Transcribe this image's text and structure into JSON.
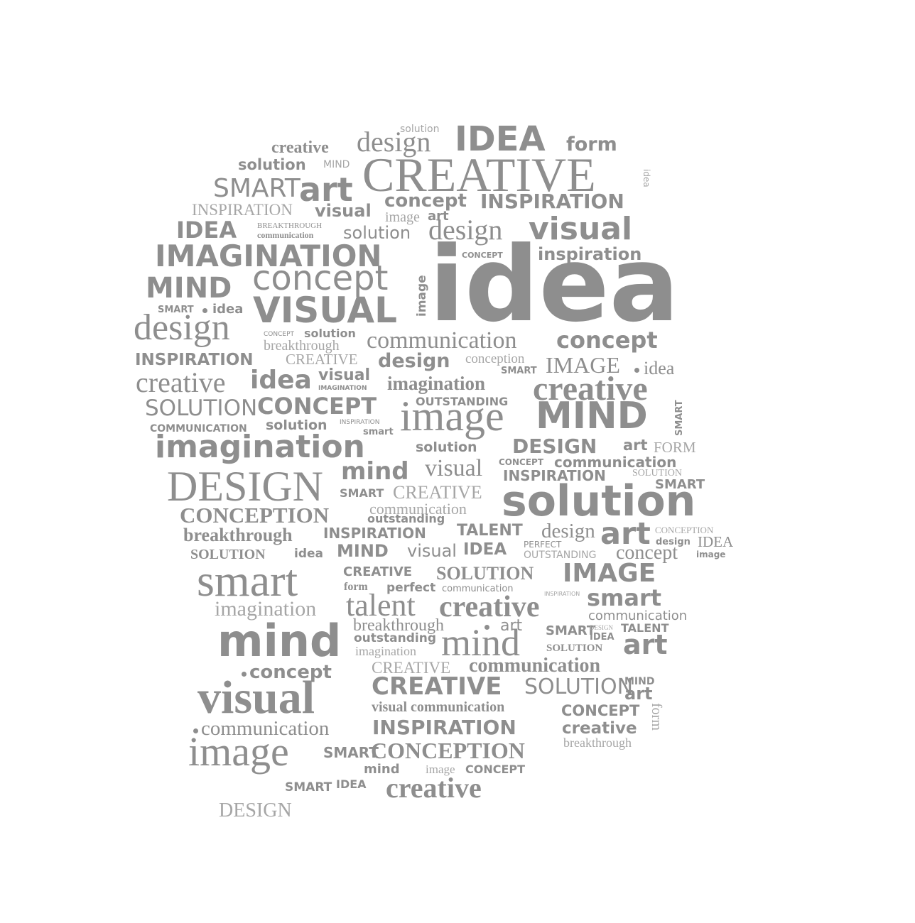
{
  "words": {
    "w001": "solution",
    "w002": "creative",
    "w003": "design",
    "w004": "IDEA",
    "w005": "form",
    "w006": "solution",
    "w007": "MIND",
    "w008": "CREATIVE",
    "w009": "idea",
    "w010": "SMART",
    "w011": "art",
    "w012": "concept",
    "w013": "INSPIRATION",
    "w014": "INSPIRATION",
    "w015": "visual",
    "w016": "image",
    "w017": "art",
    "w018": "IDEA",
    "w019": "BREAKTHROUGH",
    "w020": "communication",
    "w021": "solution",
    "w022": "design",
    "w023": "visual",
    "w024": "IMAGINATION",
    "w025": "CONCEPT",
    "w026": "inspiration",
    "w027": "MIND",
    "w028": "concept",
    "w029": "image",
    "w030": "idea",
    "w031": "SMART",
    "w032": "idea",
    "w033": "VISUAL",
    "w034": "design",
    "w035": "CONCEPT",
    "w036": "solution",
    "w037": "breakthrough",
    "w038": "communication",
    "w039": "concept",
    "w040": "INSPIRATION",
    "w041": "CREATIVE",
    "w042": "design",
    "w043": "conception",
    "w044": "SMART",
    "w045": "IMAGE",
    "w046": "idea",
    "w047": "creative",
    "w048": "idea",
    "w049": "visual",
    "w050": "IMAGINATION",
    "w051": "imagination",
    "w052": "creative",
    "w053": "SOLUTION",
    "w054": "CONCEPT",
    "w055": "OUTSTANDING",
    "w056": "image",
    "w057": "MIND",
    "w058": "SMART",
    "w059": "COMMUNICATION",
    "w060": "solution",
    "w061": "INSPIRATION",
    "w062": "smart",
    "w063": "imagination",
    "w064": "solution",
    "w065": "DESIGN",
    "w066": "art",
    "w067": "FORM",
    "w068": "mind",
    "w069": "visual",
    "w070": "CONCEPT",
    "w071": "communication",
    "w072": "DESIGN",
    "w073": "INSPIRATION",
    "w074": "SOLUTION",
    "w075": "SMART",
    "w076": "SMART",
    "w077": "CREATIVE",
    "w078": "solution",
    "w079": "CONCEPTION",
    "w080": "communication",
    "w081": "outstanding",
    "w082": "breakthrough",
    "w083": "INSPIRATION",
    "w084": "TALENT",
    "w085": "design",
    "w086": "art",
    "w087": "CONCEPTION",
    "w088": "design",
    "w089": "IDEA",
    "w090": "SOLUTION",
    "w091": "idea",
    "w092": "MIND",
    "w093": "visual",
    "w094": "IDEA",
    "w095": "PERFECT",
    "w096": "OUTSTANDING",
    "w097": "concept",
    "w098": "image",
    "w099": "smart",
    "w100": "CREATIVE",
    "w101": "SOLUTION",
    "w102": "IMAGE",
    "w103": "form",
    "w104": "perfect",
    "w105": "communication",
    "w106": "INSPIRATION",
    "w107": "smart",
    "w108": "imagination",
    "w109": "talent",
    "w110": "creative",
    "w111": "communication",
    "w112": "mind",
    "w113": "breakthrough",
    "w114": "art",
    "w115": "SMART",
    "w116": "DESIGN",
    "w117": "TALENT",
    "w118": "outstanding",
    "w119": "imagination",
    "w120": "mind",
    "w121": "IDEA",
    "w122": "SOLUTION",
    "w123": "art",
    "w124": "concept",
    "w125": "CREATIVE",
    "w126": "communication",
    "w127": "visual",
    "w128": "CREATIVE",
    "w129": "SOLUTION",
    "w130": "MIND",
    "w131": "art",
    "w132": "visual communication",
    "w133": "CONCEPT",
    "w134": "form",
    "w135": "communication",
    "w136": "INSPIRATION",
    "w137": "creative",
    "w138": "breakthrough",
    "w139": "image",
    "w140": "SMART",
    "w141": "CONCEPTION",
    "w142": "mind",
    "w143": "image",
    "w144": "CONCEPT",
    "w145": "SMART",
    "w146": "IDEA",
    "w147": "creative",
    "w148": "DESIGN"
  }
}
